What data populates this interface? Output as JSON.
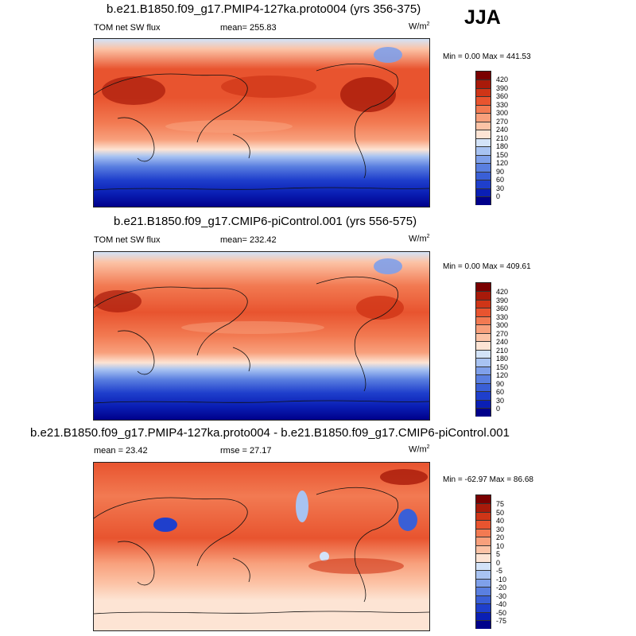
{
  "season": "JJA",
  "panels": [
    {
      "title": "b.e21.B1850.f09_g17.PMIP4-127ka.proto004 (yrs 356-375)",
      "left_label": "TOM net SW flux",
      "center_label": "mean= 255.83",
      "units": "W/m",
      "units_sup": "2",
      "minmax": "Min =   0.00 Max = 441.53",
      "cbar_labels": [
        "420",
        "390",
        "360",
        "330",
        "300",
        "270",
        "240",
        "210",
        "180",
        "150",
        "120",
        "90",
        "60",
        "30",
        "0"
      ]
    },
    {
      "title": "b.e21.B1850.f09_g17.CMIP6-piControl.001 (yrs 556-575)",
      "left_label": "TOM net SW flux",
      "center_label": "mean= 232.42",
      "units": "W/m",
      "units_sup": "2",
      "minmax": "Min =   0.00 Max = 409.61",
      "cbar_labels": [
        "420",
        "390",
        "360",
        "330",
        "300",
        "270",
        "240",
        "210",
        "180",
        "150",
        "120",
        "90",
        "60",
        "30",
        "0"
      ]
    },
    {
      "title": "b.e21.B1850.f09_g17.PMIP4-127ka.proto004 - b.e21.B1850.f09_g17.CMIP6-piControl.001",
      "left_label": "mean =  23.42",
      "center_label": "rmse =  27.17",
      "units": "W/m",
      "units_sup": "2",
      "minmax": "Min = -62.97 Max =  86.68",
      "cbar_labels": [
        "75",
        "50",
        "40",
        "30",
        "20",
        "10",
        "5",
        "0",
        "-5",
        "-10",
        "-20",
        "-30",
        "-40",
        "-50",
        "-75"
      ]
    }
  ],
  "chart_data": [
    {
      "type": "heatmap",
      "title": "b.e21.B1850.f09_g17.PMIP4-127ka.proto004 (yrs 356-375)",
      "variable": "TOM net SW flux",
      "units": "W/m2",
      "mean": 255.83,
      "min": 0.0,
      "max": 441.53,
      "levels": [
        0,
        30,
        60,
        90,
        120,
        150,
        180,
        210,
        240,
        270,
        300,
        330,
        360,
        390,
        420
      ],
      "colors": [
        "#00008b",
        "#0a1fb5",
        "#1f3fcc",
        "#3a5fd6",
        "#5a7fe0",
        "#7fa0ea",
        "#a8c3f2",
        "#d3e3f8",
        "#fde4d4",
        "#fcc3a6",
        "#f8a07c",
        "#f27a52",
        "#e8542f",
        "#cf3517",
        "#a81a0a",
        "#7a0000"
      ]
    },
    {
      "type": "heatmap",
      "title": "b.e21.B1850.f09_g17.CMIP6-piControl.001 (yrs 556-575)",
      "variable": "TOM net SW flux",
      "units": "W/m2",
      "mean": 232.42,
      "min": 0.0,
      "max": 409.61,
      "levels": [
        0,
        30,
        60,
        90,
        120,
        150,
        180,
        210,
        240,
        270,
        300,
        330,
        360,
        390,
        420
      ],
      "colors": [
        "#00008b",
        "#0a1fb5",
        "#1f3fcc",
        "#3a5fd6",
        "#5a7fe0",
        "#7fa0ea",
        "#a8c3f2",
        "#d3e3f8",
        "#fde4d4",
        "#fcc3a6",
        "#f8a07c",
        "#f27a52",
        "#e8542f",
        "#cf3517",
        "#a81a0a",
        "#7a0000"
      ]
    },
    {
      "type": "heatmap",
      "title": "b.e21.B1850.f09_g17.PMIP4-127ka.proto004 - b.e21.B1850.f09_g17.CMIP6-piControl.001",
      "units": "W/m2",
      "mean": 23.42,
      "rmse": 27.17,
      "min": -62.97,
      "max": 86.68,
      "levels": [
        -75,
        -50,
        -40,
        -30,
        -20,
        -10,
        -5,
        0,
        5,
        10,
        20,
        30,
        40,
        50,
        75
      ],
      "colors": [
        "#00008b",
        "#0a1fb5",
        "#1f3fcc",
        "#3a5fd6",
        "#5a7fe0",
        "#7fa0ea",
        "#a8c3f2",
        "#d3e3f8",
        "#fde4d4",
        "#fcc3a6",
        "#f8a07c",
        "#f27a52",
        "#e8542f",
        "#cf3517",
        "#a81a0a",
        "#7a0000"
      ]
    }
  ]
}
